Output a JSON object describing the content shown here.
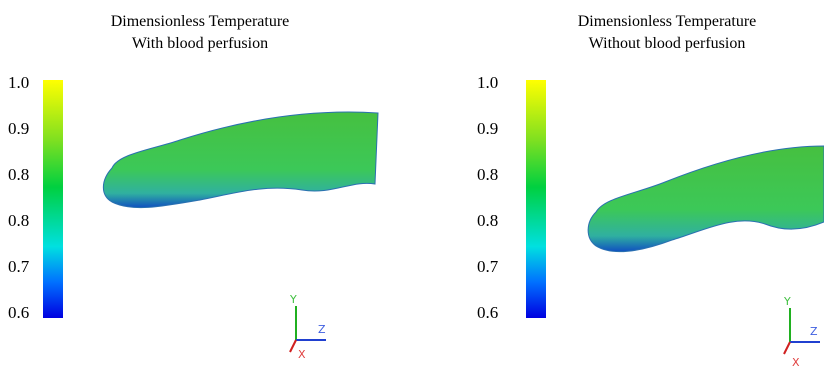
{
  "panels": [
    {
      "title": [
        "Dimensionless Temperature",
        "With blood perfusion"
      ],
      "colorbar_labels": [
        "1.0",
        "0.9",
        "0.8",
        "0.8",
        "0.7",
        "0.6"
      ],
      "axes": [
        "Y",
        "Z",
        "X"
      ]
    },
    {
      "title": [
        "Dimensionless Temperature",
        "Without blood perfusion"
      ],
      "colorbar_labels": [
        "1.0",
        "0.9",
        "0.8",
        "0.8",
        "0.7",
        "0.6"
      ],
      "axes": [
        "Y",
        "Z",
        "X"
      ]
    }
  ]
}
